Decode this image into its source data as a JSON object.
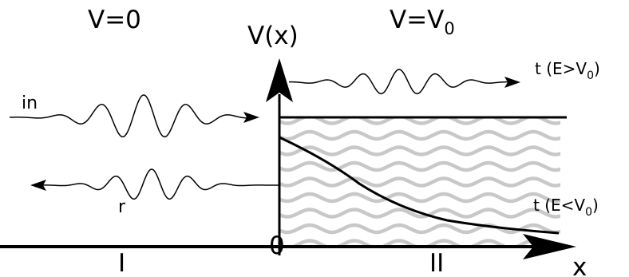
{
  "regions": {
    "left_potential": "V=0",
    "right_potential_base": "V=V",
    "right_potential_sub": "0",
    "left_name": "I",
    "right_name": "II"
  },
  "axes": {
    "y_label": "V(x)",
    "x_label": "x",
    "origin_label": "0"
  },
  "waves": {
    "incident": "in",
    "reflected": "r",
    "transmitted_above_prefix": "t (E>V",
    "transmitted_below_prefix": "t (E<V",
    "transmitted_sub": "0",
    "transmitted_suffix": ")"
  },
  "colors": {
    "ink": "#000000",
    "barrier_pattern": "#c8c8c8"
  }
}
